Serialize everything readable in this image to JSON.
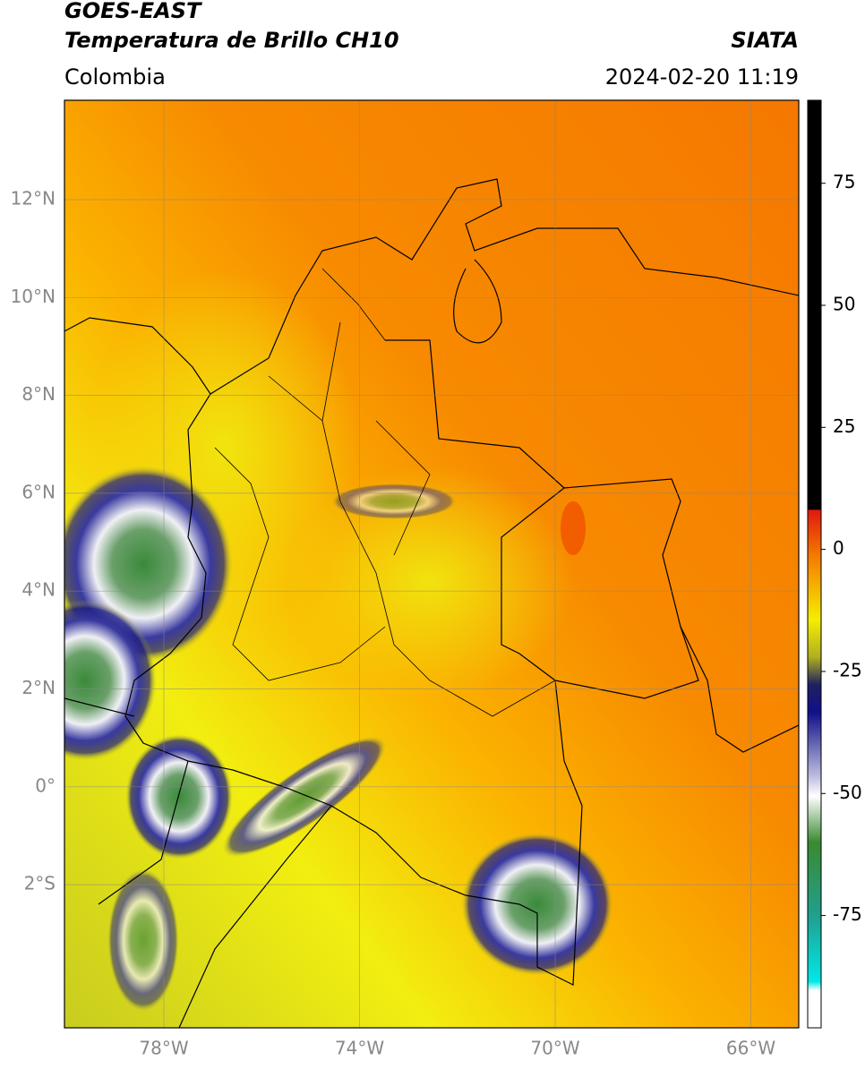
{
  "header": {
    "title": "GOES-EAST",
    "subtitle": "Temperatura de Brillo CH10",
    "region": "Colombia",
    "source": "SIATA",
    "datetime": "2024-02-20 11:19"
  },
  "map": {
    "lat_ticks": [
      "12°N",
      "10°N",
      "8°N",
      "6°N",
      "4°N",
      "2°N",
      "0°",
      "2°S"
    ],
    "lon_ticks": [
      "78°W",
      "74°W",
      "70°W",
      "66°W"
    ]
  },
  "colorbar": {
    "lim": [
      -98,
      92
    ],
    "ticks": [
      75,
      50,
      25,
      0,
      -25,
      -50,
      -75
    ]
  }
}
